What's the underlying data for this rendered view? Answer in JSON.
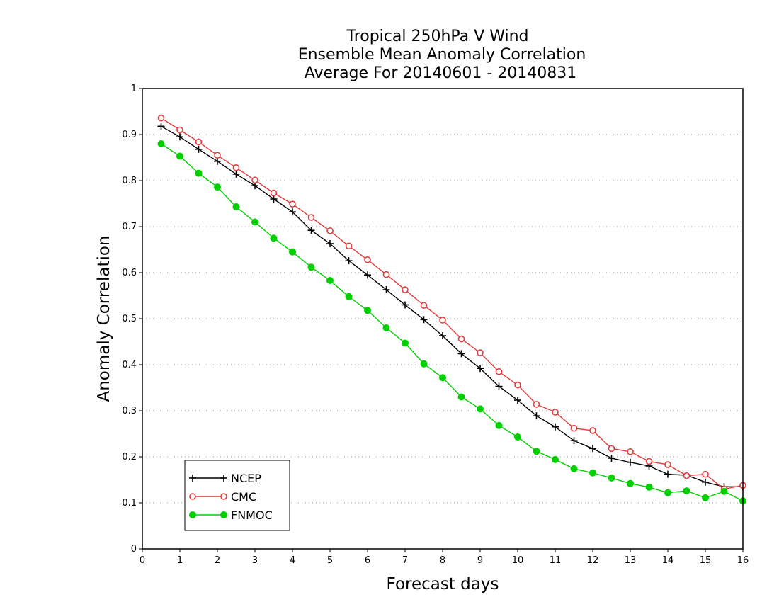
{
  "chart_data": {
    "type": "line",
    "title": [
      "Tropical 250hPa V Wind",
      "Ensemble Mean Anomaly Correlation",
      "Average For 20140601 - 20140831"
    ],
    "xlabel": "Forecast days",
    "ylabel": "Anomaly Correlation",
    "xlim": [
      0,
      16
    ],
    "ylim": [
      0,
      1
    ],
    "xticks": [
      "0",
      "1",
      "2",
      "3",
      "4",
      "5",
      "6",
      "7",
      "8",
      "9",
      "10",
      "11",
      "12",
      "13",
      "14",
      "15",
      "16"
    ],
    "yticks": [
      "0",
      "0.1",
      "0.2",
      "0.3",
      "0.4",
      "0.5",
      "0.6",
      "0.7",
      "0.8",
      "0.9",
      "1"
    ],
    "grid": "horizontal dotted",
    "legend_position": "bottom-left",
    "x": [
      0.5,
      1,
      1.5,
      2,
      2.5,
      3,
      3.5,
      4,
      4.5,
      5,
      5.5,
      6,
      6.5,
      7,
      7.5,
      8,
      8.5,
      9,
      9.5,
      10,
      10.5,
      11,
      11.5,
      12,
      12.5,
      13,
      13.5,
      14,
      14.5,
      15,
      15.5,
      16
    ],
    "series": [
      {
        "name": "NCEP",
        "color": "#000000",
        "marker": "plus",
        "values": [
          0.918,
          0.895,
          0.868,
          0.842,
          0.814,
          0.789,
          0.76,
          0.732,
          0.692,
          0.663,
          0.626,
          0.595,
          0.563,
          0.53,
          0.498,
          0.463,
          0.424,
          0.392,
          0.353,
          0.323,
          0.289,
          0.265,
          0.235,
          0.218,
          0.197,
          0.188,
          0.18,
          0.162,
          0.16,
          0.145,
          0.135,
          0.135
        ]
      },
      {
        "name": "CMC",
        "color": "#e03c3c",
        "marker": "open-circle",
        "values": [
          0.936,
          0.91,
          0.884,
          0.855,
          0.828,
          0.801,
          0.773,
          0.749,
          0.72,
          0.691,
          0.658,
          0.628,
          0.596,
          0.563,
          0.529,
          0.497,
          0.456,
          0.426,
          0.385,
          0.356,
          0.314,
          0.297,
          0.262,
          0.257,
          0.218,
          0.211,
          0.19,
          0.183,
          0.159,
          0.162,
          0.13,
          0.138
        ]
      },
      {
        "name": "FNMOC",
        "color": "#00d000",
        "marker": "filled-circle",
        "values": [
          0.88,
          0.853,
          0.816,
          0.786,
          0.743,
          0.71,
          0.675,
          0.645,
          0.612,
          0.583,
          0.548,
          0.518,
          0.48,
          0.447,
          0.402,
          0.372,
          0.33,
          0.304,
          0.268,
          0.243,
          0.212,
          0.194,
          0.174,
          0.165,
          0.154,
          0.142,
          0.134,
          0.122,
          0.126,
          0.111,
          0.125,
          0.104
        ]
      }
    ]
  }
}
